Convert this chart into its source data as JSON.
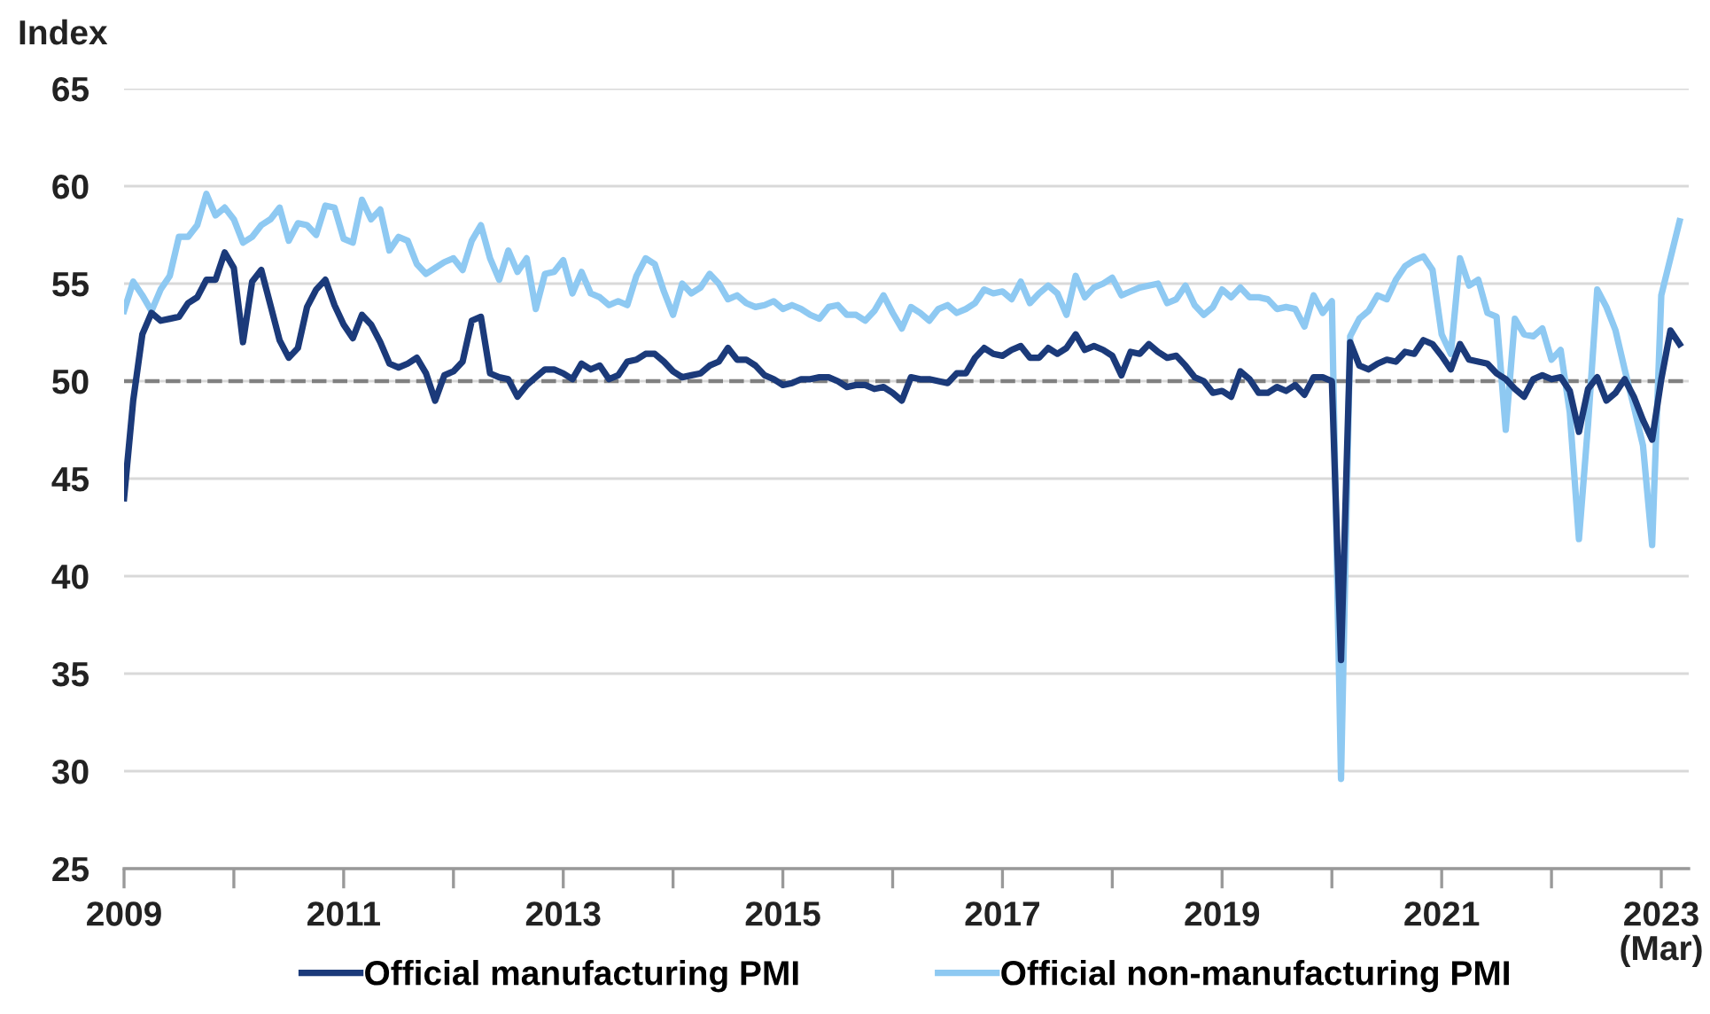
{
  "chart_data": {
    "type": "line",
    "ylabel": "Index",
    "xlim": [
      "2009-01",
      "2023-04"
    ],
    "ylim": [
      25,
      65
    ],
    "yticks": [
      25,
      30,
      35,
      40,
      45,
      50,
      55,
      60,
      65
    ],
    "xticks": [
      {
        "value": "2009-01",
        "label": "2009"
      },
      {
        "value": "2010-01",
        "label": null
      },
      {
        "value": "2011-01",
        "label": "2011"
      },
      {
        "value": "2012-01",
        "label": null
      },
      {
        "value": "2013-01",
        "label": "2013"
      },
      {
        "value": "2014-01",
        "label": null
      },
      {
        "value": "2015-01",
        "label": "2015"
      },
      {
        "value": "2016-01",
        "label": null
      },
      {
        "value": "2017-01",
        "label": "2017"
      },
      {
        "value": "2018-01",
        "label": null
      },
      {
        "value": "2019-01",
        "label": "2019"
      },
      {
        "value": "2020-01",
        "label": null
      },
      {
        "value": "2021-01",
        "label": "2021"
      },
      {
        "value": "2022-01",
        "label": null
      },
      {
        "value": "2023-01",
        "label": "2023"
      }
    ],
    "annotations": [
      "(Mar)"
    ],
    "grid": "y",
    "legend": "bottom",
    "line_style": "solid",
    "ref_lines": [
      {
        "axis": "y",
        "value": 50,
        "color": "#808080",
        "line_style": "dashed"
      }
    ],
    "x": [
      "2009-01",
      "2009-02",
      "2009-03",
      "2009-04",
      "2009-05",
      "2009-06",
      "2009-07",
      "2009-08",
      "2009-09",
      "2009-10",
      "2009-11",
      "2009-12",
      "2010-01",
      "2010-02",
      "2010-03",
      "2010-04",
      "2010-05",
      "2010-06",
      "2010-07",
      "2010-08",
      "2010-09",
      "2010-10",
      "2010-11",
      "2010-12",
      "2011-01",
      "2011-02",
      "2011-03",
      "2011-04",
      "2011-05",
      "2011-06",
      "2011-07",
      "2011-08",
      "2011-09",
      "2011-10",
      "2011-11",
      "2011-12",
      "2012-01",
      "2012-02",
      "2012-03",
      "2012-04",
      "2012-05",
      "2012-06",
      "2012-07",
      "2012-08",
      "2012-09",
      "2012-10",
      "2012-11",
      "2012-12",
      "2013-01",
      "2013-02",
      "2013-03",
      "2013-04",
      "2013-05",
      "2013-06",
      "2013-07",
      "2013-08",
      "2013-09",
      "2013-10",
      "2013-11",
      "2013-12",
      "2014-01",
      "2014-02",
      "2014-03",
      "2014-04",
      "2014-05",
      "2014-06",
      "2014-07",
      "2014-08",
      "2014-09",
      "2014-10",
      "2014-11",
      "2014-12",
      "2015-01",
      "2015-02",
      "2015-03",
      "2015-04",
      "2015-05",
      "2015-06",
      "2015-07",
      "2015-08",
      "2015-09",
      "2015-10",
      "2015-11",
      "2015-12",
      "2016-01",
      "2016-02",
      "2016-03",
      "2016-04",
      "2016-05",
      "2016-06",
      "2016-07",
      "2016-08",
      "2016-09",
      "2016-10",
      "2016-11",
      "2016-12",
      "2017-01",
      "2017-02",
      "2017-03",
      "2017-04",
      "2017-05",
      "2017-06",
      "2017-07",
      "2017-08",
      "2017-09",
      "2017-10",
      "2017-11",
      "2017-12",
      "2018-01",
      "2018-02",
      "2018-03",
      "2018-04",
      "2018-05",
      "2018-06",
      "2018-07",
      "2018-08",
      "2018-09",
      "2018-10",
      "2018-11",
      "2018-12",
      "2019-01",
      "2019-02",
      "2019-03",
      "2019-04",
      "2019-05",
      "2019-06",
      "2019-07",
      "2019-08",
      "2019-09",
      "2019-10",
      "2019-11",
      "2019-12",
      "2020-01",
      "2020-02",
      "2020-03",
      "2020-04",
      "2020-05",
      "2020-06",
      "2020-07",
      "2020-08",
      "2020-09",
      "2020-10",
      "2020-11",
      "2020-12",
      "2021-01",
      "2021-02",
      "2021-03",
      "2021-04",
      "2021-05",
      "2021-06",
      "2021-07",
      "2021-08",
      "2021-09",
      "2021-10",
      "2021-11",
      "2021-12",
      "2022-01",
      "2022-02",
      "2022-03",
      "2022-04",
      "2022-05",
      "2022-06",
      "2022-07",
      "2022-08",
      "2022-09",
      "2022-10",
      "2022-11",
      "2022-12",
      "2023-01",
      "2023-02",
      "2023-03"
    ],
    "series": [
      {
        "name": "Official manufacturing PMI",
        "color": "#1b3a7a",
        "values": [
          44.0,
          49.0,
          52.4,
          53.5,
          53.1,
          53.2,
          53.3,
          54.0,
          54.3,
          55.2,
          55.2,
          56.6,
          55.8,
          52.0,
          55.1,
          55.7,
          53.9,
          52.1,
          51.2,
          51.7,
          53.8,
          54.7,
          55.2,
          53.9,
          52.9,
          52.2,
          53.4,
          52.9,
          52.0,
          50.9,
          50.7,
          50.9,
          51.2,
          50.4,
          49.0,
          50.3,
          50.5,
          51.0,
          53.1,
          53.3,
          50.4,
          50.2,
          50.1,
          49.2,
          49.8,
          50.2,
          50.6,
          50.6,
          50.4,
          50.1,
          50.9,
          50.6,
          50.8,
          50.1,
          50.3,
          51.0,
          51.1,
          51.4,
          51.4,
          51.0,
          50.5,
          50.2,
          50.3,
          50.4,
          50.8,
          51.0,
          51.7,
          51.1,
          51.1,
          50.8,
          50.3,
          50.1,
          49.8,
          49.9,
          50.1,
          50.1,
          50.2,
          50.2,
          50.0,
          49.7,
          49.8,
          49.8,
          49.6,
          49.7,
          49.4,
          49.0,
          50.2,
          50.1,
          50.1,
          50.0,
          49.9,
          50.4,
          50.4,
          51.2,
          51.7,
          51.4,
          51.3,
          51.6,
          51.8,
          51.2,
          51.2,
          51.7,
          51.4,
          51.7,
          52.4,
          51.6,
          51.8,
          51.6,
          51.3,
          50.3,
          51.5,
          51.4,
          51.9,
          51.5,
          51.2,
          51.3,
          50.8,
          50.2,
          50.0,
          49.4,
          49.5,
          49.2,
          50.5,
          50.1,
          49.4,
          49.4,
          49.7,
          49.5,
          49.8,
          49.3,
          50.2,
          50.2,
          50.0,
          35.7,
          52.0,
          50.8,
          50.6,
          50.9,
          51.1,
          51.0,
          51.5,
          51.4,
          52.1,
          51.9,
          51.3,
          50.6,
          51.9,
          51.1,
          51.0,
          50.9,
          50.4,
          50.1,
          49.6,
          49.2,
          50.1,
          50.3,
          50.1,
          50.2,
          49.5,
          47.4,
          49.6,
          50.2,
          49.0,
          49.4,
          50.1,
          49.2,
          48.0,
          47.0,
          50.1,
          52.6,
          51.9
        ]
      },
      {
        "name": "Official non-manufacturing PMI",
        "color": "#8ec9f2",
        "values": [
          53.6,
          55.1,
          54.4,
          53.6,
          54.7,
          55.4,
          57.4,
          57.4,
          58.0,
          59.6,
          58.5,
          58.9,
          58.3,
          57.1,
          57.4,
          58.0,
          58.3,
          58.9,
          57.2,
          58.1,
          58.0,
          57.5,
          59.0,
          58.9,
          57.3,
          57.1,
          59.3,
          58.3,
          58.8,
          56.7,
          57.4,
          57.2,
          56.0,
          55.5,
          55.8,
          56.1,
          56.3,
          55.7,
          57.2,
          58.0,
          56.3,
          55.2,
          56.7,
          55.6,
          56.3,
          53.7,
          55.5,
          55.6,
          56.2,
          54.5,
          55.6,
          54.5,
          54.3,
          53.9,
          54.1,
          53.9,
          55.4,
          56.3,
          56.0,
          54.6,
          53.4,
          55.0,
          54.5,
          54.8,
          55.5,
          55.0,
          54.2,
          54.4,
          54.0,
          53.8,
          53.9,
          54.1,
          53.7,
          53.9,
          53.7,
          53.4,
          53.2,
          53.8,
          53.9,
          53.4,
          53.4,
          53.1,
          53.6,
          54.4,
          53.5,
          52.7,
          53.8,
          53.5,
          53.1,
          53.7,
          53.9,
          53.5,
          53.7,
          54.0,
          54.7,
          54.5,
          54.6,
          54.2,
          55.1,
          54.0,
          54.5,
          54.9,
          54.5,
          53.4,
          55.4,
          54.3,
          54.8,
          55.0,
          55.3,
          54.4,
          54.6,
          54.8,
          54.9,
          55.0,
          54.0,
          54.2,
          54.9,
          53.9,
          53.4,
          53.8,
          54.7,
          54.3,
          54.8,
          54.3,
          54.3,
          54.2,
          53.7,
          53.8,
          53.7,
          52.8,
          54.4,
          53.5,
          54.1,
          29.6,
          52.3,
          53.2,
          53.6,
          54.4,
          54.2,
          55.2,
          55.9,
          56.2,
          56.4,
          55.7,
          52.4,
          51.4,
          56.3,
          54.9,
          55.2,
          53.5,
          53.3,
          47.5,
          53.2,
          52.4,
          52.3,
          52.7,
          51.1,
          51.6,
          48.4,
          41.9,
          47.8,
          54.7,
          53.8,
          52.6,
          50.6,
          48.7,
          46.7,
          41.6,
          54.4,
          56.3,
          58.2
        ]
      }
    ]
  }
}
